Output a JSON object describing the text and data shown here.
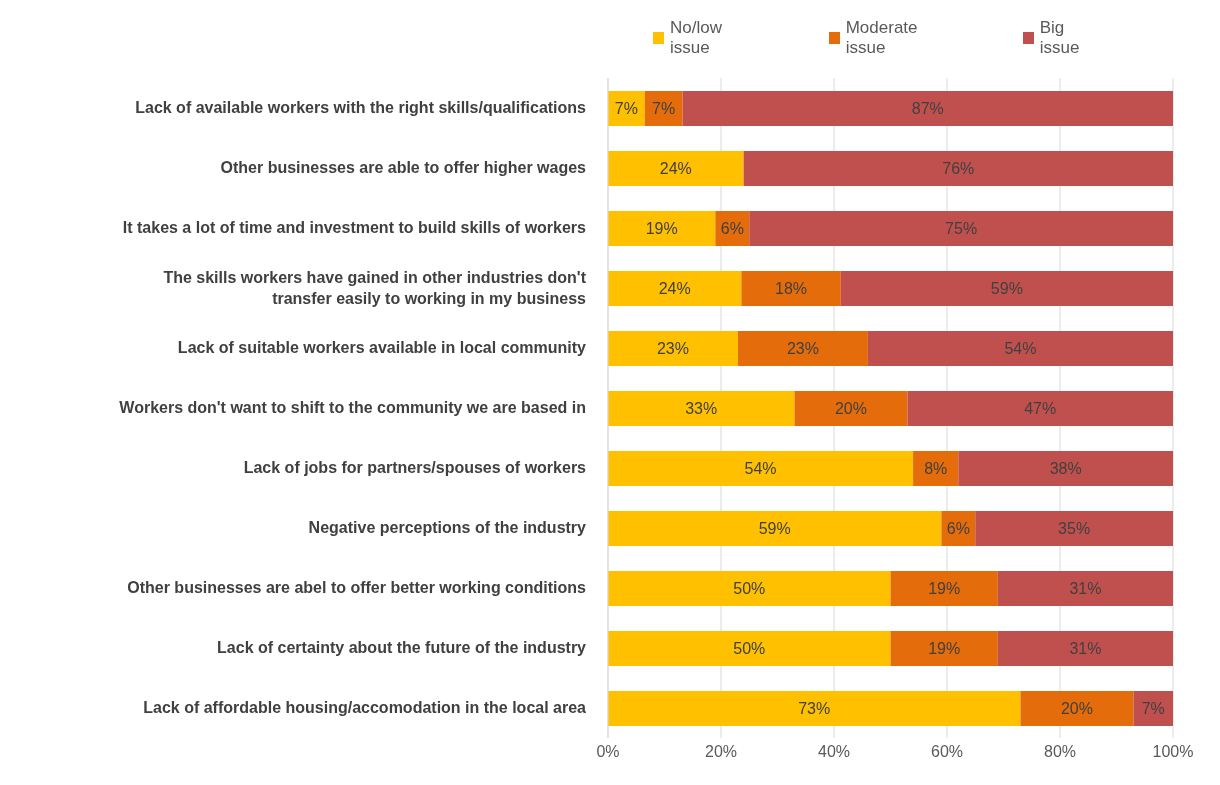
{
  "chart_data": {
    "type": "bar",
    "orientation": "horizontal",
    "stacked": true,
    "categories": [
      "Lack of available workers with the right skills/qualifications",
      "Other businesses are able to offer higher wages",
      "It takes a lot of time and investment to build skills of workers",
      "The skills workers have gained in other industries don't transfer easily to working in my business",
      "Lack of suitable workers available in local community",
      "Workers don't want to shift to the community we are based in",
      "Lack of jobs for partners/spouses of workers",
      "Negative perceptions of the industry",
      "Other businesses are abel to offer better working conditions",
      "Lack of certainty about the future of the industry",
      "Lack of affordable housing/accomodation in the local area"
    ],
    "series": [
      {
        "name": "No/low issue",
        "color": "#ffc000",
        "values": [
          6.5,
          24,
          19,
          23.6,
          23,
          33,
          54,
          59,
          50,
          50,
          73
        ],
        "value_labels": [
          "7%",
          "24%",
          "19%",
          "24%",
          "23%",
          "33%",
          "54%",
          "59%",
          "50%",
          "50%",
          "73%"
        ]
      },
      {
        "name": "Moderate issue",
        "color": "#e46c0a",
        "values": [
          6.7,
          null,
          6,
          17.6,
          23,
          20,
          8,
          6,
          19,
          19,
          20
        ],
        "value_labels": [
          "7%",
          null,
          "6%",
          "18%",
          "23%",
          "20%",
          "8%",
          "6%",
          "19%",
          "19%",
          "20%"
        ]
      },
      {
        "name": "Big issue",
        "color": "#c0504d",
        "values": [
          86.8,
          76,
          75,
          58.8,
          54,
          47,
          38,
          35,
          31,
          31,
          7
        ],
        "value_labels": [
          "87%",
          "76%",
          "75%",
          "59%",
          "54%",
          "47%",
          "38%",
          "35%",
          "31%",
          "31%",
          "7%"
        ]
      }
    ],
    "xlim": [
      0,
      100
    ],
    "xticks": [
      {
        "value": 0,
        "label": "0%"
      },
      {
        "value": 20,
        "label": "20%"
      },
      {
        "value": 40,
        "label": "40%"
      },
      {
        "value": 60,
        "label": "60%"
      },
      {
        "value": 80,
        "label": "80%"
      },
      {
        "value": 100,
        "label": "100%"
      }
    ],
    "grid": "x",
    "legend": "top"
  }
}
